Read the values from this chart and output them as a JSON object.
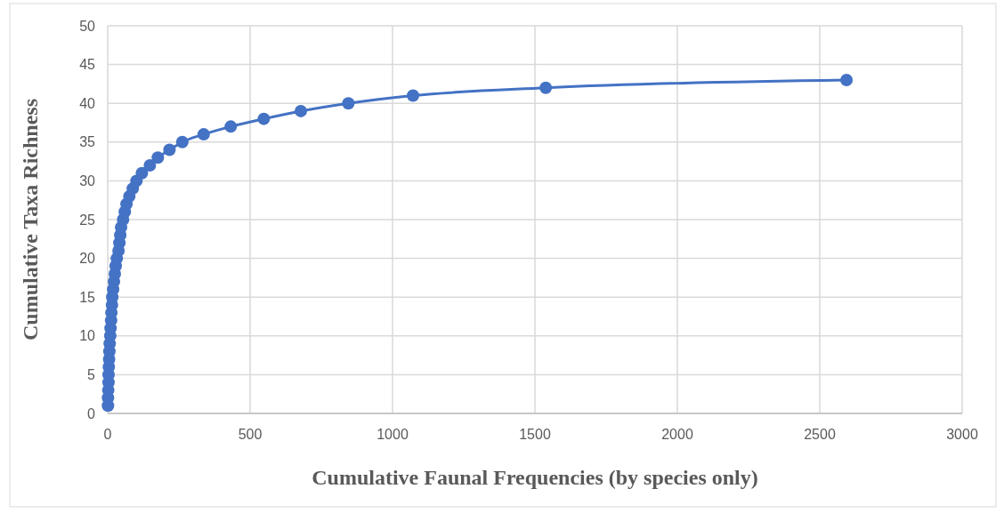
{
  "chart_data": {
    "type": "line",
    "xlabel": "Cumulative Faunal Frequencies (by species only)",
    "ylabel": "Cumulative Taxa Richness",
    "xlim": [
      0,
      3000
    ],
    "xticks": [
      0,
      500,
      1000,
      1500,
      2000,
      2500,
      3000
    ],
    "ylim": [
      0,
      50
    ],
    "yticks": [
      0,
      5,
      10,
      15,
      20,
      25,
      30,
      35,
      40,
      45,
      50
    ],
    "grid": true,
    "marker": "circle",
    "line_style": "solid",
    "series": [
      {
        "color": "#4472c4",
        "x": [
          1,
          1,
          2,
          3,
          3,
          4,
          5,
          6,
          7,
          9,
          10,
          12,
          13,
          15,
          16,
          19,
          22,
          25,
          28,
          32,
          38,
          41,
          44,
          47,
          54,
          60,
          66,
          76,
          88,
          101,
          120,
          148,
          176,
          217,
          262,
          337,
          432,
          548,
          678,
          845,
          1072,
          1538,
          2594
        ],
        "values": [
          1,
          2,
          3,
          4,
          5,
          6,
          7,
          8,
          9,
          10,
          11,
          12,
          13,
          14,
          15,
          16,
          17,
          18,
          19,
          20,
          21,
          22,
          23,
          24,
          25,
          26,
          27,
          28,
          29,
          30,
          31,
          32,
          33,
          34,
          35,
          36,
          37,
          38,
          39,
          40,
          41,
          42,
          43
        ]
      }
    ]
  }
}
